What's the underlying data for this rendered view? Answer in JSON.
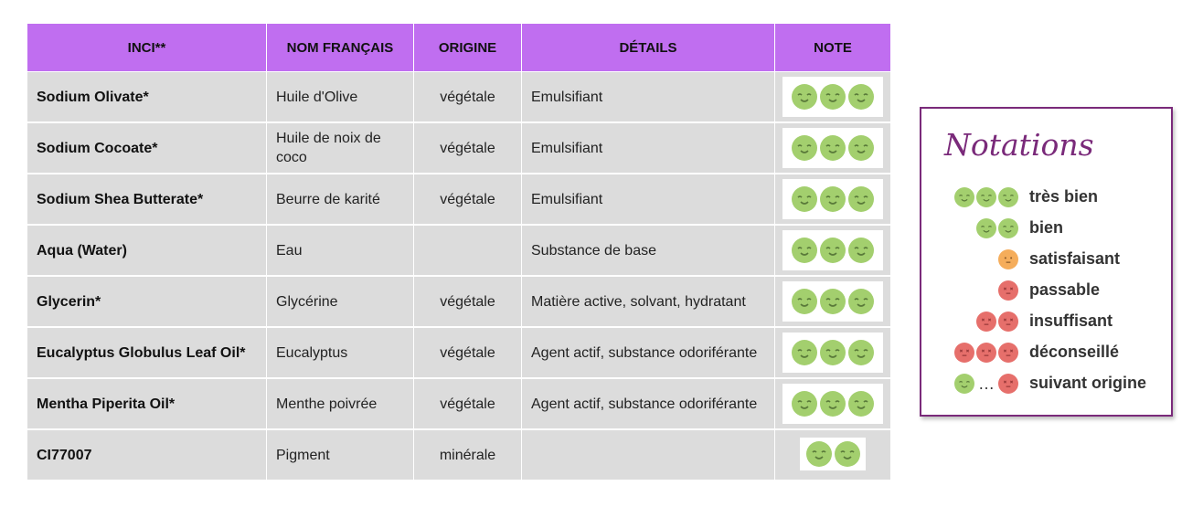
{
  "table": {
    "headers": [
      "INCI**",
      "NOM FRANÇAIS",
      "ORIGINE",
      "DÉTAILS",
      "NOTE"
    ],
    "rows": [
      {
        "inci": "Sodium Olivate*",
        "nom": "Huile d'Olive",
        "origine": "végétale",
        "details": "Emulsifiant",
        "note": 3
      },
      {
        "inci": "Sodium Cocoate*",
        "nom": "Huile de noix de coco",
        "origine": "végétale",
        "details": "Emulsifiant",
        "note": 3
      },
      {
        "inci": "Sodium Shea Butterate*",
        "nom": "Beurre de karité",
        "origine": "végétale",
        "details": "Emulsifiant",
        "note": 3
      },
      {
        "inci": "Aqua (Water)",
        "nom": "Eau",
        "origine": "",
        "details": "Substance de base",
        "note": 3
      },
      {
        "inci": "Glycerin*",
        "nom": "Glycérine",
        "origine": "végétale",
        "details": "Matière active, solvant, hydratant",
        "note": 3
      },
      {
        "inci": "Eucalyptus Globulus Leaf Oil*",
        "nom": "Eucalyptus",
        "origine": "végétale",
        "details": "Agent actif, substance odoriférante",
        "note": 3
      },
      {
        "inci": "Mentha Piperita Oil*",
        "nom": "Menthe poivrée",
        "origine": "végétale",
        "details": "Agent actif, substance odoriférante",
        "note": 3
      },
      {
        "inci": "CI77007",
        "nom": "Pigment",
        "origine": "minérale",
        "details": "",
        "note": 2
      }
    ]
  },
  "legend": {
    "title": "Notations",
    "items": [
      {
        "label": "très bien",
        "faces": [
          "good",
          "good",
          "good"
        ]
      },
      {
        "label": "bien",
        "faces": [
          "good",
          "good"
        ]
      },
      {
        "label": "satisfaisant",
        "faces": [
          "mid"
        ]
      },
      {
        "label": "passable",
        "faces": [
          "bad"
        ]
      },
      {
        "label": "insuffisant",
        "faces": [
          "bad",
          "bad"
        ]
      },
      {
        "label": "déconseillé",
        "faces": [
          "bad",
          "bad",
          "bad"
        ]
      },
      {
        "label": "suivant origine",
        "faces": [
          "good",
          "…",
          "bad"
        ]
      }
    ]
  },
  "colors": {
    "header": "#c06ef0",
    "cell": "#dcdcdc",
    "good": "#a3cf6e",
    "mid": "#f5ad5b",
    "bad": "#e66f6b",
    "legend_border": "#7a2a7a"
  }
}
